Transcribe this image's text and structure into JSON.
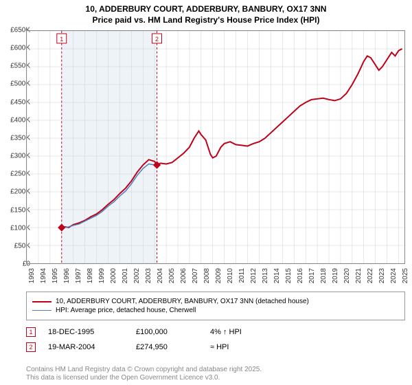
{
  "title_line1": "10, ADDERBURY COURT, ADDERBURY, BANBURY, OX17 3NN",
  "title_line2": "Price paid vs. HM Land Registry's House Price Index (HPI)",
  "chart": {
    "type": "line",
    "background_color": "#ffffff",
    "shaded_band_color": "#eef3f8",
    "grid_color": "#d0d0d0",
    "border_color": "#888888",
    "y_axis": {
      "min": 0,
      "max": 650000,
      "tick_step": 50000,
      "prefix": "£",
      "suffix": "K",
      "divide": 1000,
      "fontsize": 10
    },
    "x_axis": {
      "min": 1993,
      "max": 2025.5,
      "ticks": [
        1993,
        1994,
        1995,
        1996,
        1997,
        1998,
        1999,
        2000,
        2001,
        2002,
        2003,
        2004,
        2005,
        2006,
        2007,
        2008,
        2009,
        2010,
        2011,
        2012,
        2013,
        2014,
        2015,
        2016,
        2017,
        2018,
        2019,
        2020,
        2021,
        2022,
        2023,
        2024,
        2025
      ],
      "fontsize": 10,
      "rotation": -90
    },
    "shaded_band": {
      "from": 1996,
      "to": 2004.2
    },
    "series": [
      {
        "name": "price_paid",
        "color": "#c00018",
        "width": 2,
        "data": [
          [
            1996,
            100000
          ],
          [
            1996.3,
            102000
          ],
          [
            1996.6,
            100000
          ],
          [
            1997,
            108000
          ],
          [
            1997.5,
            113000
          ],
          [
            1998,
            120000
          ],
          [
            1998.5,
            130000
          ],
          [
            1999,
            138000
          ],
          [
            1999.5,
            150000
          ],
          [
            2000,
            165000
          ],
          [
            2000.5,
            178000
          ],
          [
            2001,
            195000
          ],
          [
            2001.5,
            210000
          ],
          [
            2002,
            230000
          ],
          [
            2002.5,
            255000
          ],
          [
            2003,
            275000
          ],
          [
            2003.5,
            290000
          ],
          [
            2004,
            285000
          ],
          [
            2004.2,
            275000
          ],
          [
            2004.5,
            280000
          ],
          [
            2005,
            278000
          ],
          [
            2005.5,
            282000
          ],
          [
            2006,
            295000
          ],
          [
            2006.5,
            308000
          ],
          [
            2007,
            325000
          ],
          [
            2007.4,
            350000
          ],
          [
            2007.8,
            370000
          ],
          [
            2008,
            360000
          ],
          [
            2008.4,
            345000
          ],
          [
            2008.8,
            305000
          ],
          [
            2009,
            295000
          ],
          [
            2009.3,
            300000
          ],
          [
            2009.7,
            325000
          ],
          [
            2010,
            335000
          ],
          [
            2010.5,
            340000
          ],
          [
            2011,
            332000
          ],
          [
            2011.5,
            330000
          ],
          [
            2012,
            328000
          ],
          [
            2012.5,
            335000
          ],
          [
            2013,
            340000
          ],
          [
            2013.5,
            350000
          ],
          [
            2014,
            365000
          ],
          [
            2014.5,
            380000
          ],
          [
            2015,
            395000
          ],
          [
            2015.5,
            410000
          ],
          [
            2016,
            425000
          ],
          [
            2016.5,
            440000
          ],
          [
            2017,
            450000
          ],
          [
            2017.5,
            458000
          ],
          [
            2018,
            460000
          ],
          [
            2018.5,
            462000
          ],
          [
            2019,
            458000
          ],
          [
            2019.5,
            455000
          ],
          [
            2020,
            460000
          ],
          [
            2020.5,
            475000
          ],
          [
            2021,
            500000
          ],
          [
            2021.5,
            530000
          ],
          [
            2022,
            565000
          ],
          [
            2022.3,
            580000
          ],
          [
            2022.6,
            575000
          ],
          [
            2023,
            555000
          ],
          [
            2023.3,
            540000
          ],
          [
            2023.6,
            550000
          ],
          [
            2024,
            570000
          ],
          [
            2024.4,
            590000
          ],
          [
            2024.7,
            580000
          ],
          [
            2025,
            595000
          ],
          [
            2025.3,
            600000
          ]
        ]
      },
      {
        "name": "hpi",
        "color": "#4a7fb8",
        "width": 1.5,
        "data": [
          [
            1996,
            100000
          ],
          [
            1996.5,
            101000
          ],
          [
            1997,
            106000
          ],
          [
            1997.5,
            110000
          ],
          [
            1998,
            118000
          ],
          [
            1998.5,
            126000
          ],
          [
            1999,
            134000
          ],
          [
            1999.5,
            145000
          ],
          [
            2000,
            160000
          ],
          [
            2000.5,
            172000
          ],
          [
            2001,
            188000
          ],
          [
            2001.5,
            202000
          ],
          [
            2002,
            222000
          ],
          [
            2002.5,
            246000
          ],
          [
            2003,
            265000
          ],
          [
            2003.5,
            278000
          ],
          [
            2004,
            275000
          ],
          [
            2004.2,
            274000
          ]
        ]
      }
    ],
    "sale_events": [
      {
        "n": 1,
        "year": 1996,
        "y": 100000,
        "color": "#c00018",
        "line_color": "#c00018"
      },
      {
        "n": 2,
        "year": 2004.2,
        "y": 275000,
        "color": "#c00018",
        "line_color": "#c00018"
      }
    ]
  },
  "legend": {
    "items": [
      {
        "color": "#c00018",
        "width": 2,
        "label": "10, ADDERBURY COURT, ADDERBURY, BANBURY, OX17 3NN (detached house)"
      },
      {
        "color": "#4a7fb8",
        "width": 1.5,
        "label": "HPI: Average price, detached house, Cherwell"
      }
    ]
  },
  "sales": [
    {
      "n": "1",
      "color": "#c00018",
      "date": "18-DEC-1995",
      "price": "£100,000",
      "pct": "4% ↑ HPI"
    },
    {
      "n": "2",
      "color": "#c00018",
      "date": "19-MAR-2004",
      "price": "£274,950",
      "pct": "≈ HPI"
    }
  ],
  "credits_line1": "Contains HM Land Registry data © Crown copyright and database right 2025.",
  "credits_line2": "This data is licensed under the Open Government Licence v3.0."
}
